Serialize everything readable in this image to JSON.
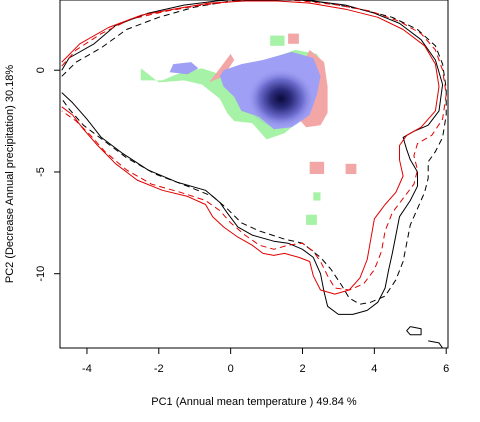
{
  "chart_data": {
    "type": "heatmap",
    "xlabel": "PC1 (Annual mean temperature ) 49.84 %",
    "ylabel": "PC2 (Decrease Annual precipitation) 30.18%",
    "xlim": [
      -4.75,
      6.05
    ],
    "ylim": [
      -13.65,
      3.45
    ],
    "xticks": [
      -4,
      -2,
      0,
      2,
      4,
      6
    ],
    "yticks": [
      0,
      -5,
      -10
    ],
    "colors": {
      "overlap_blue": "#9f9ff5",
      "density_dark": "#0a0a3a",
      "green_only": "#a6f2a6",
      "red_only": "#f2a6a6",
      "contour_black": "#000000",
      "contour_red": "#e00000"
    },
    "regions": [
      {
        "color_key": "green_only",
        "points": [
          [
            -2.5,
            0.1
          ],
          [
            -2.5,
            -0.5
          ],
          [
            -1.9,
            -0.5
          ],
          [
            -1.5,
            -0.2
          ],
          [
            -0.8,
            0.1
          ],
          [
            -0.3,
            -0.2
          ],
          [
            0.3,
            0.2
          ],
          [
            1.0,
            0.5
          ],
          [
            1.8,
            1.0
          ],
          [
            2.4,
            0.8
          ],
          [
            2.6,
            0.2
          ],
          [
            2.4,
            -1.0
          ],
          [
            2.1,
            -1.8
          ],
          [
            1.9,
            -2.5
          ],
          [
            1.5,
            -3.1
          ],
          [
            1.0,
            -3.4
          ],
          [
            0.6,
            -2.6
          ],
          [
            0.1,
            -2.5
          ],
          [
            -0.1,
            -2.1
          ],
          [
            -0.3,
            -1.4
          ],
          [
            -0.8,
            -0.7
          ],
          [
            -1.3,
            -0.5
          ],
          [
            -2.0,
            -0.6
          ],
          [
            -2.5,
            0.1
          ]
        ]
      },
      {
        "color_key": "red_only",
        "points": [
          [
            0.0,
            0.8
          ],
          [
            -0.3,
            0.1
          ],
          [
            -0.6,
            -0.6
          ],
          [
            -0.2,
            -0.3
          ],
          [
            0.1,
            0.5
          ]
        ]
      },
      {
        "color_key": "red_only",
        "points": [
          [
            2.2,
            1.0
          ],
          [
            2.6,
            0.4
          ],
          [
            2.7,
            -0.8
          ],
          [
            2.7,
            -2.1
          ],
          [
            2.5,
            -2.7
          ],
          [
            2.1,
            -2.8
          ],
          [
            1.9,
            -2.4
          ],
          [
            2.0,
            -1.0
          ],
          [
            2.0,
            0.3
          ]
        ]
      },
      {
        "color_key": "overlap_blue",
        "points": [
          [
            -0.2,
            0.0
          ],
          [
            0.3,
            0.3
          ],
          [
            0.9,
            0.5
          ],
          [
            1.7,
            0.9
          ],
          [
            2.3,
            0.6
          ],
          [
            2.5,
            -0.3
          ],
          [
            2.4,
            -1.2
          ],
          [
            2.2,
            -2.2
          ],
          [
            1.7,
            -2.8
          ],
          [
            1.2,
            -2.9
          ],
          [
            0.8,
            -2.3
          ],
          [
            0.3,
            -2.0
          ],
          [
            0.1,
            -1.3
          ],
          [
            -0.2,
            -0.8
          ],
          [
            -0.3,
            -0.3
          ]
        ]
      },
      {
        "color_key": "overlap_blue",
        "points": [
          [
            -1.7,
            -0.1
          ],
          [
            -1.2,
            -0.2
          ],
          [
            -0.9,
            0.1
          ],
          [
            -1.1,
            0.4
          ],
          [
            -1.6,
            0.3
          ]
        ]
      },
      {
        "color_key": "green_only",
        "points": [
          [
            1.1,
            1.7
          ],
          [
            1.5,
            1.7
          ],
          [
            1.5,
            1.2
          ],
          [
            1.1,
            1.2
          ]
        ]
      },
      {
        "color_key": "red_only",
        "points": [
          [
            1.6,
            1.8
          ],
          [
            1.9,
            1.8
          ],
          [
            1.9,
            1.3
          ],
          [
            1.6,
            1.3
          ]
        ]
      },
      {
        "color_key": "red_only",
        "points": [
          [
            2.2,
            -4.5
          ],
          [
            2.6,
            -4.5
          ],
          [
            2.6,
            -5.1
          ],
          [
            2.2,
            -5.1
          ]
        ]
      },
      {
        "color_key": "red_only",
        "points": [
          [
            3.2,
            -4.6
          ],
          [
            3.5,
            -4.6
          ],
          [
            3.5,
            -5.1
          ],
          [
            3.2,
            -5.1
          ]
        ]
      },
      {
        "color_key": "green_only",
        "points": [
          [
            2.3,
            -6.0
          ],
          [
            2.5,
            -6.0
          ],
          [
            2.5,
            -6.4
          ],
          [
            2.3,
            -6.4
          ]
        ]
      },
      {
        "color_key": "green_only",
        "points": [
          [
            2.1,
            -7.1
          ],
          [
            2.4,
            -7.1
          ],
          [
            2.4,
            -7.6
          ],
          [
            2.1,
            -7.6
          ]
        ]
      }
    ],
    "density_center": [
      1.4,
      -1.4
    ],
    "contours": [
      {
        "color_key": "contour_black",
        "dash": "solid",
        "points": [
          [
            -4.7,
            0.0
          ],
          [
            -4.5,
            0.6
          ],
          [
            -3.8,
            1.3
          ],
          [
            -3.2,
            2.2
          ],
          [
            -2.3,
            2.8
          ],
          [
            -1.3,
            3.2
          ],
          [
            -0.4,
            3.4
          ],
          [
            0.3,
            3.5
          ],
          [
            0.8,
            3.6
          ],
          [
            1.4,
            3.5
          ],
          [
            2.3,
            3.4
          ],
          [
            3.2,
            3.2
          ],
          [
            4.0,
            2.8
          ],
          [
            4.7,
            2.3
          ],
          [
            5.3,
            1.5
          ],
          [
            5.7,
            0.5
          ],
          [
            5.9,
            -0.7
          ],
          [
            5.8,
            -2.0
          ],
          [
            5.5,
            -2.7
          ],
          [
            5.1,
            -3.0
          ],
          [
            4.8,
            -3.3
          ],
          [
            4.9,
            -3.9
          ],
          [
            5.0,
            -4.4
          ],
          [
            5.2,
            -5.0
          ],
          [
            5.2,
            -5.7
          ],
          [
            5.0,
            -6.4
          ],
          [
            4.7,
            -7.2
          ],
          [
            4.6,
            -8.1
          ],
          [
            4.5,
            -9.0
          ],
          [
            4.4,
            -9.8
          ],
          [
            4.3,
            -10.7
          ],
          [
            4.1,
            -11.4
          ],
          [
            3.8,
            -11.8
          ],
          [
            3.4,
            -12.0
          ],
          [
            3.0,
            -12.0
          ],
          [
            2.7,
            -11.6
          ],
          [
            2.6,
            -10.9
          ],
          [
            2.5,
            -10.0
          ],
          [
            2.3,
            -9.2
          ],
          [
            2.0,
            -8.8
          ],
          [
            1.6,
            -8.5
          ],
          [
            1.2,
            -8.4
          ],
          [
            0.6,
            -8.1
          ],
          [
            0.2,
            -7.7
          ],
          [
            -0.1,
            -7.0
          ],
          [
            -0.3,
            -6.5
          ],
          [
            -0.7,
            -5.9
          ],
          [
            -1.5,
            -5.5
          ],
          [
            -2.3,
            -4.9
          ],
          [
            -3.0,
            -4.1
          ],
          [
            -3.6,
            -3.3
          ],
          [
            -4.0,
            -2.4
          ],
          [
            -4.4,
            -1.6
          ],
          [
            -4.7,
            -1.1
          ]
        ]
      },
      {
        "color_key": "contour_black",
        "dash": "dashed",
        "points": [
          [
            -4.7,
            -0.3
          ],
          [
            -4.3,
            0.4
          ],
          [
            -3.6,
            1.1
          ],
          [
            -2.9,
            2.0
          ],
          [
            -2.0,
            2.6
          ],
          [
            -1.0,
            3.1
          ],
          [
            0.0,
            3.4
          ],
          [
            0.9,
            3.6
          ],
          [
            1.8,
            3.5
          ],
          [
            2.7,
            3.3
          ],
          [
            3.6,
            3.0
          ],
          [
            4.5,
            2.6
          ],
          [
            5.2,
            2.0
          ],
          [
            5.7,
            1.2
          ],
          [
            5.9,
            0.3
          ],
          [
            6.0,
            -0.9
          ],
          [
            6.0,
            -2.2
          ],
          [
            5.9,
            -3.3
          ],
          [
            5.7,
            -4.0
          ],
          [
            5.5,
            -4.5
          ],
          [
            5.5,
            -5.3
          ],
          [
            5.4,
            -6.0
          ],
          [
            5.2,
            -6.8
          ],
          [
            5.0,
            -7.6
          ],
          [
            4.9,
            -8.5
          ],
          [
            4.8,
            -9.4
          ],
          [
            4.6,
            -10.3
          ],
          [
            4.3,
            -11.1
          ],
          [
            3.9,
            -11.4
          ],
          [
            3.6,
            -11.5
          ],
          [
            3.3,
            -11.2
          ],
          [
            3.1,
            -10.6
          ],
          [
            2.8,
            -9.8
          ],
          [
            2.5,
            -9.2
          ],
          [
            2.0,
            -8.5
          ],
          [
            1.5,
            -8.3
          ],
          [
            0.8,
            -7.9
          ],
          [
            0.3,
            -7.5
          ],
          [
            -0.1,
            -6.8
          ],
          [
            -0.5,
            -6.2
          ],
          [
            -1.2,
            -5.7
          ],
          [
            -2.1,
            -5.1
          ],
          [
            -2.9,
            -4.3
          ],
          [
            -3.5,
            -3.5
          ],
          [
            -4.1,
            -2.7
          ],
          [
            -4.5,
            -1.9
          ],
          [
            -4.7,
            -1.4
          ]
        ]
      },
      {
        "color_key": "contour_red",
        "dash": "solid",
        "points": [
          [
            -4.7,
            0.4
          ],
          [
            -4.2,
            1.3
          ],
          [
            -3.4,
            2.1
          ],
          [
            -2.5,
            2.7
          ],
          [
            -1.6,
            3.0
          ],
          [
            -0.6,
            3.3
          ],
          [
            0.4,
            3.4
          ],
          [
            1.3,
            3.4
          ],
          [
            2.2,
            3.3
          ],
          [
            3.2,
            3.0
          ],
          [
            4.1,
            2.6
          ],
          [
            4.8,
            2.0
          ],
          [
            5.4,
            1.2
          ],
          [
            5.7,
            0.3
          ],
          [
            5.8,
            -0.8
          ],
          [
            5.7,
            -2.0
          ],
          [
            5.3,
            -2.8
          ],
          [
            4.9,
            -3.2
          ],
          [
            4.7,
            -3.7
          ],
          [
            4.7,
            -4.4
          ],
          [
            4.8,
            -5.2
          ],
          [
            4.6,
            -6.0
          ],
          [
            4.3,
            -6.6
          ],
          [
            4.0,
            -7.3
          ],
          [
            3.9,
            -8.3
          ],
          [
            3.8,
            -9.3
          ],
          [
            3.6,
            -10.2
          ],
          [
            3.3,
            -10.8
          ],
          [
            2.9,
            -11.0
          ],
          [
            2.5,
            -10.8
          ],
          [
            2.3,
            -10.1
          ],
          [
            2.2,
            -9.4
          ],
          [
            1.9,
            -9.2
          ],
          [
            1.5,
            -9.0
          ],
          [
            1.2,
            -9.1
          ],
          [
            0.9,
            -9.0
          ],
          [
            0.6,
            -8.6
          ],
          [
            0.2,
            -8.2
          ],
          [
            -0.2,
            -7.7
          ],
          [
            -0.5,
            -7.2
          ],
          [
            -0.7,
            -6.6
          ],
          [
            -1.2,
            -6.2
          ],
          [
            -1.9,
            -5.9
          ],
          [
            -2.6,
            -5.4
          ],
          [
            -3.2,
            -4.6
          ],
          [
            -3.7,
            -3.7
          ],
          [
            -4.1,
            -2.9
          ],
          [
            -4.4,
            -2.2
          ],
          [
            -4.7,
            -1.8
          ]
        ]
      },
      {
        "color_key": "contour_red",
        "dash": "dashed",
        "points": [
          [
            -4.7,
            0.2
          ],
          [
            -4.3,
            1.0
          ],
          [
            -3.6,
            1.8
          ],
          [
            -2.8,
            2.5
          ],
          [
            -1.8,
            2.9
          ],
          [
            -0.8,
            3.2
          ],
          [
            0.2,
            3.4
          ],
          [
            1.1,
            3.5
          ],
          [
            2.0,
            3.4
          ],
          [
            3.0,
            3.2
          ],
          [
            3.9,
            2.9
          ],
          [
            4.7,
            2.4
          ],
          [
            5.3,
            1.8
          ],
          [
            5.7,
            1.0
          ],
          [
            5.9,
            0.0
          ],
          [
            6.0,
            -1.2
          ],
          [
            5.9,
            -2.4
          ],
          [
            5.6,
            -3.2
          ],
          [
            5.2,
            -3.6
          ],
          [
            5.1,
            -4.2
          ],
          [
            5.2,
            -4.9
          ],
          [
            5.1,
            -5.6
          ],
          [
            4.8,
            -6.3
          ],
          [
            4.5,
            -7.0
          ],
          [
            4.3,
            -7.9
          ],
          [
            4.2,
            -8.9
          ],
          [
            4.0,
            -9.8
          ],
          [
            3.7,
            -10.5
          ],
          [
            3.3,
            -10.8
          ],
          [
            2.9,
            -10.7
          ],
          [
            2.7,
            -10.1
          ],
          [
            2.5,
            -9.4
          ],
          [
            2.3,
            -8.9
          ],
          [
            2.0,
            -8.5
          ],
          [
            1.6,
            -8.6
          ],
          [
            1.2,
            -8.8
          ],
          [
            0.8,
            -8.6
          ],
          [
            0.4,
            -8.1
          ],
          [
            0.0,
            -7.5
          ],
          [
            -0.3,
            -6.9
          ],
          [
            -0.7,
            -6.4
          ],
          [
            -1.4,
            -6.0
          ],
          [
            -2.2,
            -5.6
          ],
          [
            -2.9,
            -4.9
          ],
          [
            -3.5,
            -4.0
          ],
          [
            -3.9,
            -3.2
          ],
          [
            -4.3,
            -2.5
          ],
          [
            -4.7,
            -2.0
          ]
        ]
      },
      {
        "color_key": "contour_black",
        "dash": "solid",
        "points": [
          [
            5.0,
            -12.6
          ],
          [
            5.3,
            -12.7
          ],
          [
            5.3,
            -13.0
          ],
          [
            5.0,
            -13.0
          ],
          [
            4.9,
            -12.8
          ],
          [
            5.0,
            -12.6
          ]
        ]
      },
      {
        "color_key": "contour_black",
        "dash": "solid",
        "points": [
          [
            5.5,
            -13.3
          ],
          [
            5.8,
            -13.4
          ],
          [
            5.9,
            -13.65
          ]
        ]
      }
    ]
  }
}
